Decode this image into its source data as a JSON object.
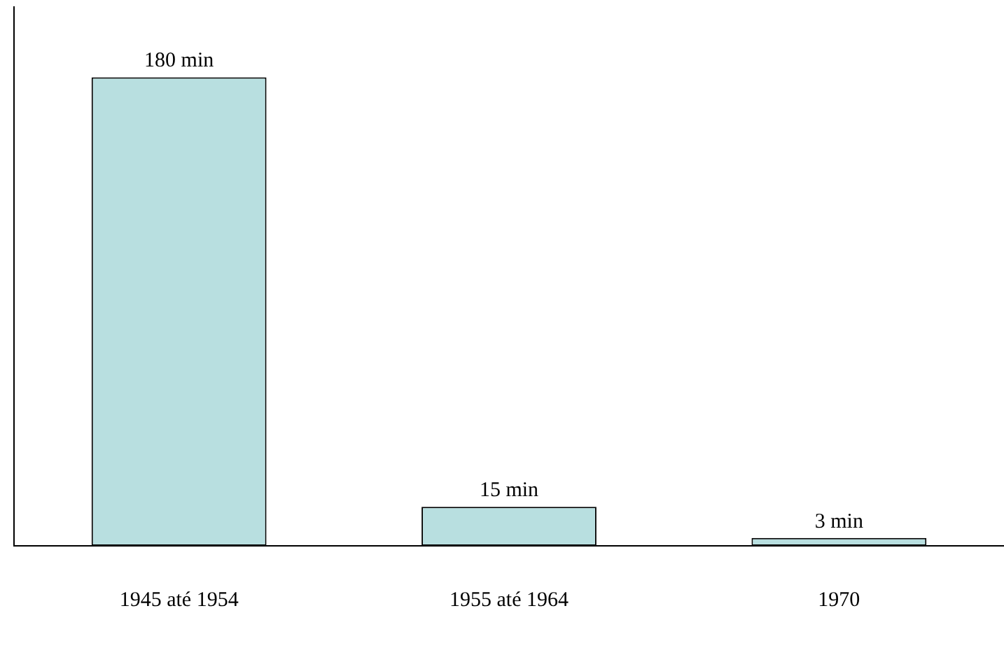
{
  "chart_data": {
    "type": "bar",
    "categories": [
      "1945 até 1954",
      "1955 até 1964",
      "1970"
    ],
    "values": [
      180,
      15,
      3
    ],
    "value_labels": [
      "180 min",
      "15 min",
      "3 min"
    ],
    "color": "#b8dfe0",
    "ylim": [
      0,
      207
    ],
    "grid": false,
    "legend": false,
    "tick_labels": "x"
  }
}
